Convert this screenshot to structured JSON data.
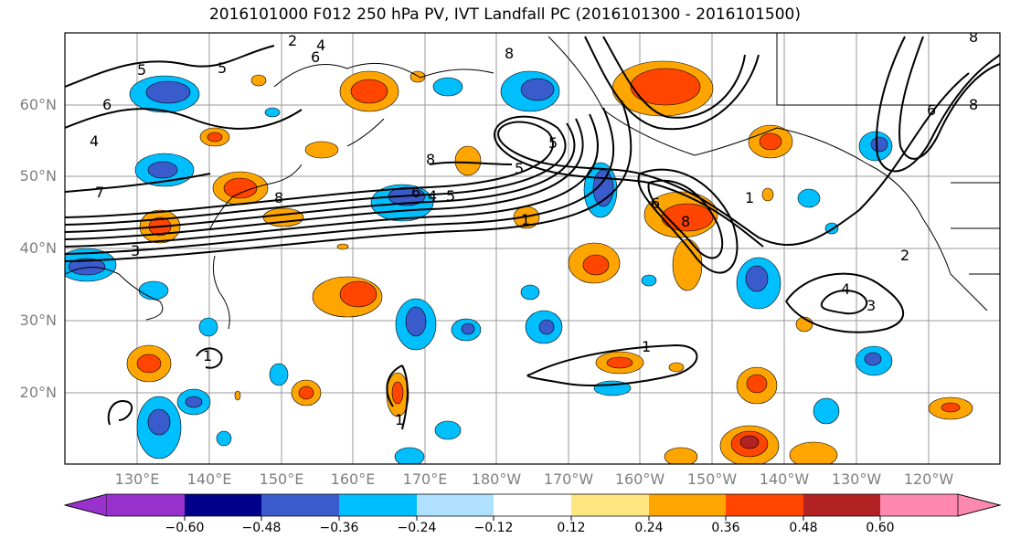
{
  "title": "2016101000 F012 250 hPa PV, IVT Landfall PC (2016101300 - 2016101500)",
  "lat_labels": [
    "60°N",
    "50°N",
    "40°N",
    "30°N",
    "20°N"
  ],
  "lon_labels": [
    "130°E",
    "140°E",
    "150°E",
    "160°E",
    "170°E",
    "180°W",
    "170°W",
    "160°W",
    "150°W",
    "140°W",
    "130°W",
    "120°W"
  ],
  "contour_labels": [
    "2",
    "4",
    "5",
    "5",
    "6",
    "7",
    "8",
    "8",
    "8",
    "5",
    "5",
    "6",
    "6",
    "4",
    "5",
    "8",
    "1",
    "3",
    "6",
    "8",
    "1",
    "2",
    "4",
    "3",
    "6",
    "8",
    "1",
    "1",
    "1",
    "4"
  ],
  "colorbar": {
    "colors": [
      "#9932CC",
      "#00008B",
      "#3A5BCC",
      "#00BFFF",
      "#B0E0FF",
      "#FFFFFF",
      "#FFE680",
      "#FFA500",
      "#FF4500",
      "#B22222",
      "#FF88B0"
    ],
    "ticks": [
      "−0.60",
      "−0.48",
      "−0.36",
      "−0.24",
      "−0.12",
      "0.12",
      "0.24",
      "0.36",
      "0.48",
      "0.60"
    ]
  }
}
